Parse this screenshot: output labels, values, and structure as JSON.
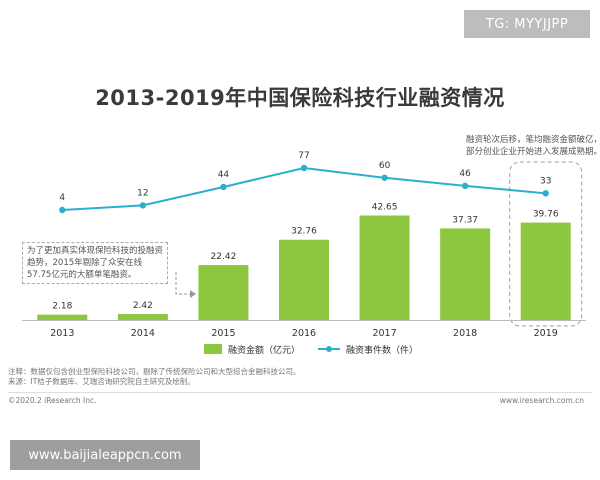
{
  "watermarks": {
    "top": "TG: MYYJJPP",
    "bottom": "www.baijialeappcn.com"
  },
  "chart_data": {
    "type": "bar",
    "title": "2013-2019年中国保险科技行业融资情况",
    "categories": [
      "2013",
      "2014",
      "2015",
      "2016",
      "2017",
      "2018",
      "2019"
    ],
    "series": [
      {
        "name": "融资金额（亿元）",
        "chart_type": "bar",
        "color": "#8dc63f",
        "values": [
          2.18,
          2.42,
          22.42,
          32.76,
          42.65,
          37.37,
          39.76
        ]
      },
      {
        "name": "融资事件数（件）",
        "chart_type": "line",
        "color": "#2bb0cc",
        "values": [
          4,
          12,
          44,
          77,
          60,
          46,
          33
        ]
      }
    ],
    "legend_position": "bottom-center",
    "grid": false,
    "highlight_category": "2019",
    "annotations": [
      "为了更加真实体现保险科技的投融资趋势，2015年剔除了众安在线57.75亿元的大额单笔融资。",
      "融资轮次后移，笔均融资金额破亿，部分创业企业开始进入发展成熟期。"
    ]
  },
  "notes": {
    "note": "注释：数据仅包含创业型保险科技公司，剔除了传统保险公司和大型综合金融科技公司。",
    "source": "来源：IT桔子数据库、艾瑞咨询研究院自主研究及绘制。"
  },
  "footer": {
    "copyright": "©2020.2 iResearch Inc.",
    "url": "www.iresearch.com.cn"
  }
}
